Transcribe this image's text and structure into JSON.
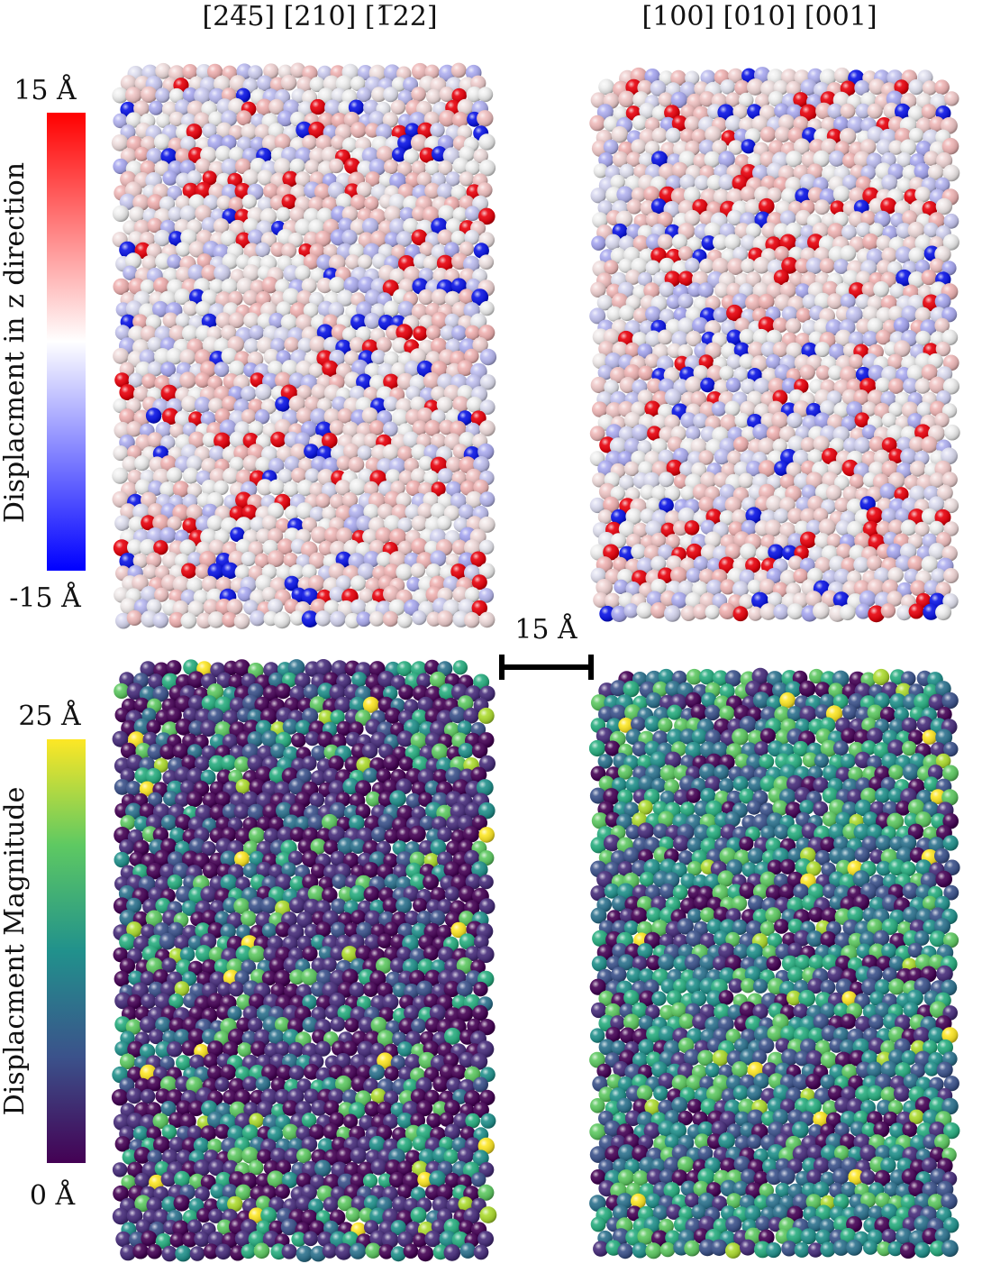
{
  "panels": [
    {
      "title": "[24̅5] [210] [1̅22]"
    },
    {
      "title": "[100] [010] [001]"
    }
  ],
  "colorbars": [
    {
      "max_label": "15 Å",
      "min_label": "-15 Å",
      "label": "Displacment in z direction"
    },
    {
      "max_label": "25 Å",
      "min_label": "0 Å",
      "label": "Displacment Magnitude"
    }
  ],
  "scale_bar": {
    "label": "15 Å"
  }
}
